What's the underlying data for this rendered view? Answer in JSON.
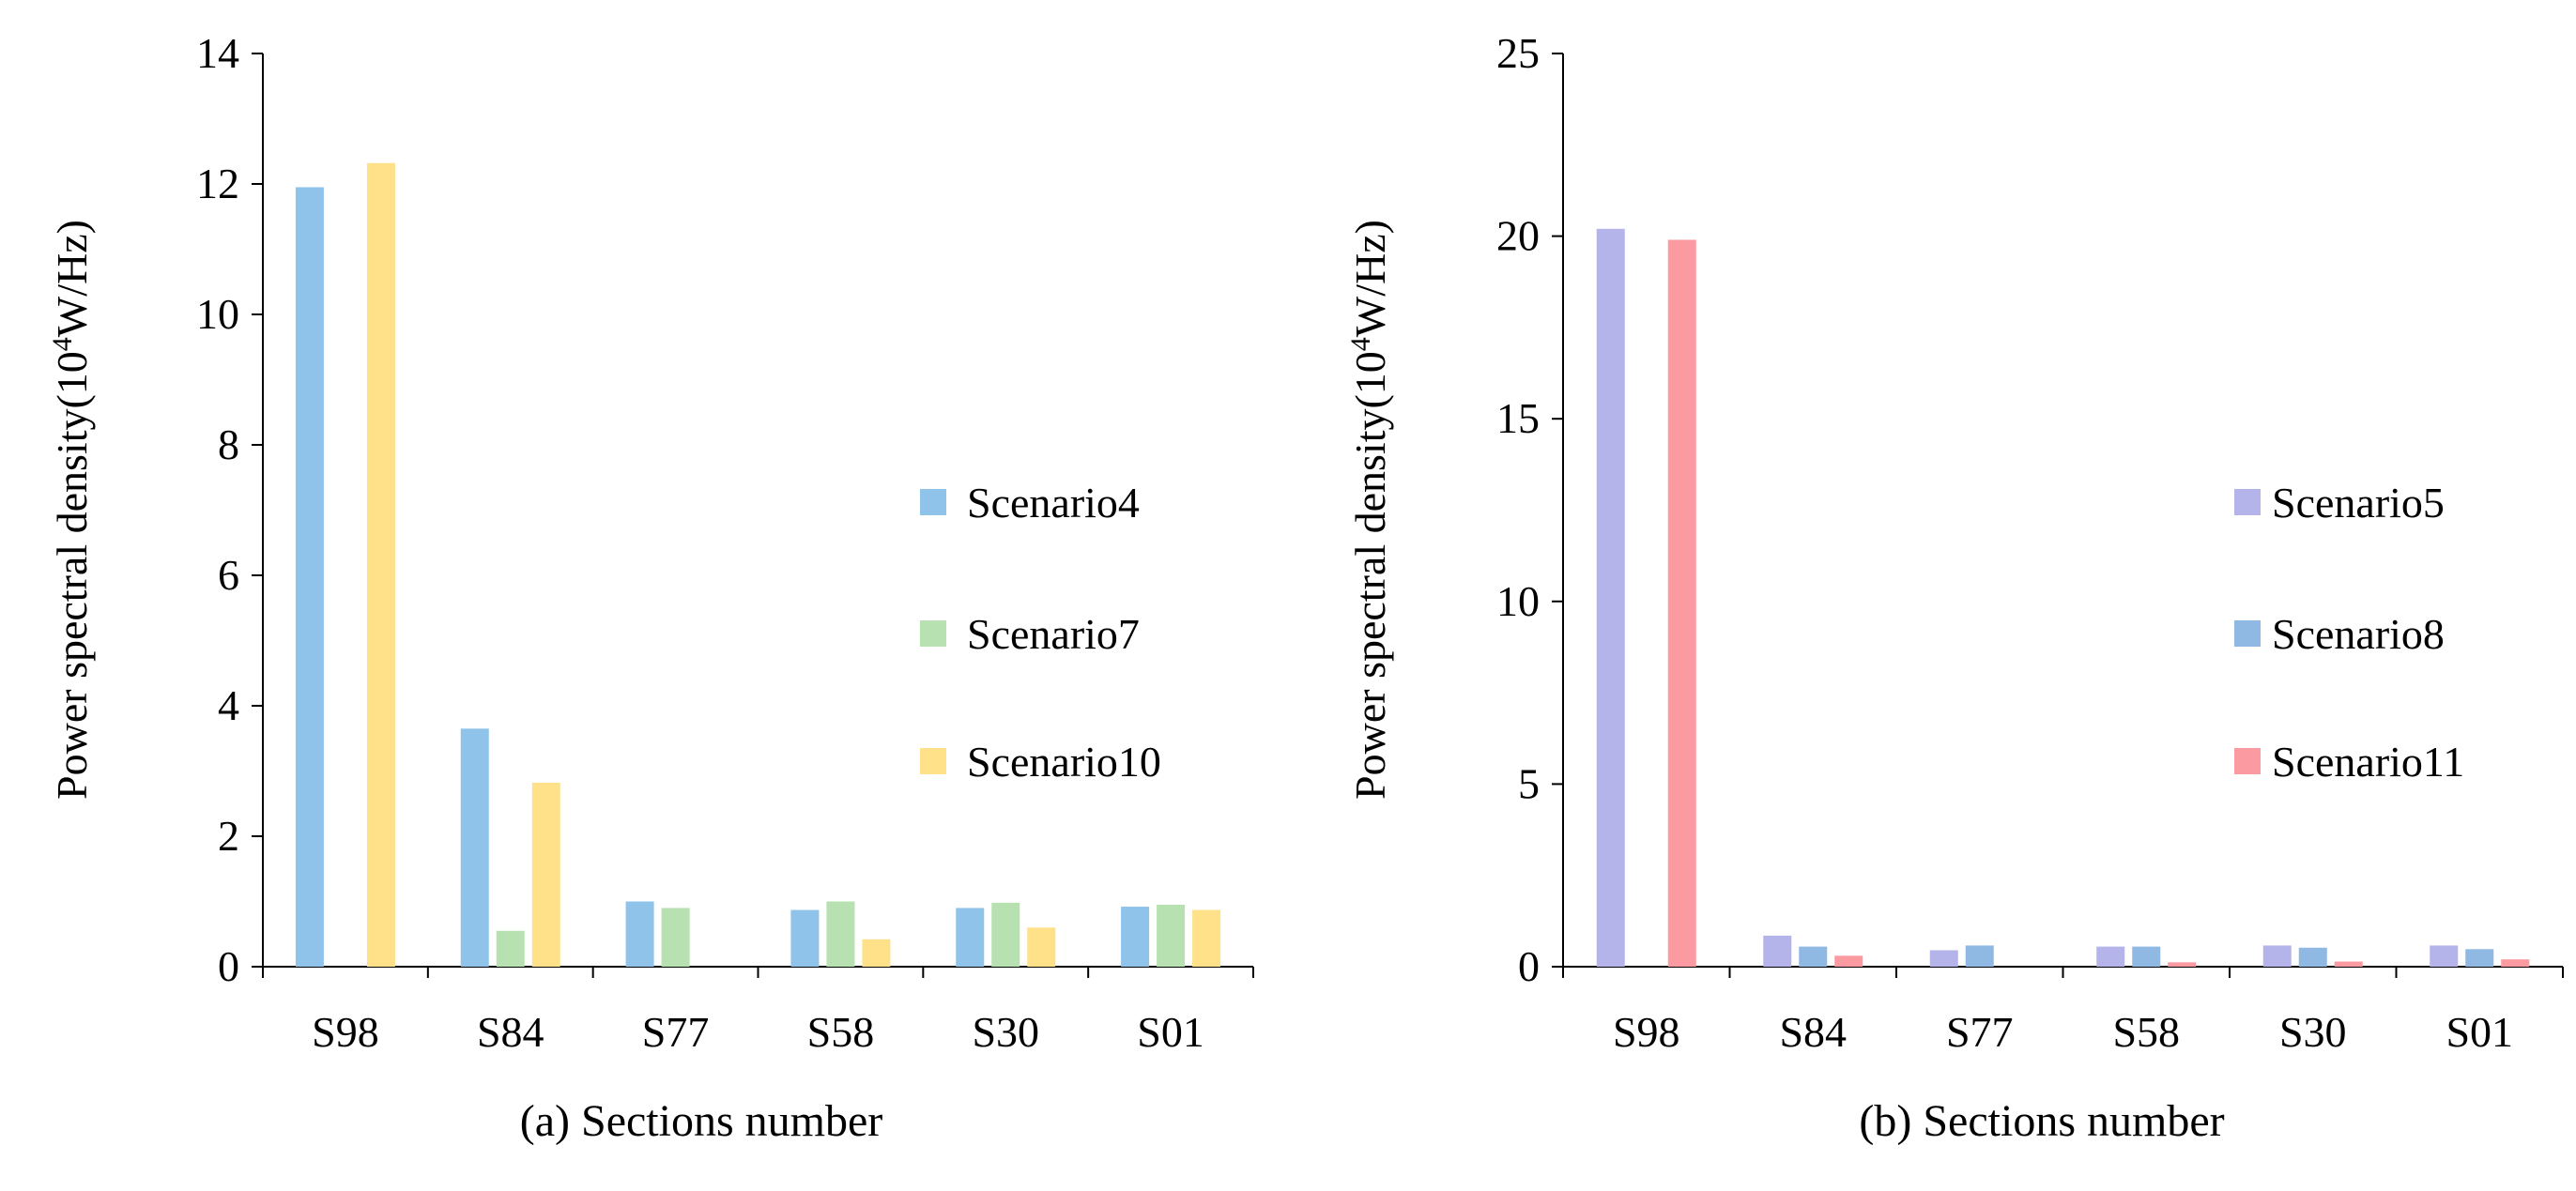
{
  "chart_data": [
    {
      "id": "a",
      "type": "bar",
      "xlabel": "(a)  Sections number",
      "ylabel_main": "Power spectral density(10",
      "ylabel_sup": "4",
      "ylabel_tail": "W/Hz)",
      "ylim": [
        0,
        14
      ],
      "yticks": [
        "0",
        "2",
        "4",
        "6",
        "8",
        "10",
        "12",
        "14"
      ],
      "categories": [
        "S98",
        "S84",
        "S77",
        "S58",
        "S30",
        "S01"
      ],
      "series": [
        {
          "name": "Scenario4",
          "color": "#8fc3ea",
          "values": [
            11.95,
            3.65,
            1.0,
            0.87,
            0.9,
            0.92
          ]
        },
        {
          "name": "Scenario7",
          "color": "#b7e1b0",
          "values": [
            0,
            0.55,
            0.9,
            1.0,
            0.98,
            0.95
          ]
        },
        {
          "name": "Scenario10",
          "color": "#fee189",
          "values": [
            12.32,
            2.82,
            0,
            0.42,
            0.6,
            0.87
          ]
        }
      ],
      "legend_position": "right"
    },
    {
      "id": "b",
      "type": "bar",
      "xlabel": "(b) Sections number",
      "ylabel_main": "Power spectral density(10",
      "ylabel_sup": "4",
      "ylabel_tail": "W/Hz)",
      "ylim": [
        0,
        25
      ],
      "yticks": [
        "0",
        "5",
        "10",
        "15",
        "20",
        "25"
      ],
      "categories": [
        "S98",
        "S84",
        "S77",
        "S58",
        "S30",
        "S01"
      ],
      "series": [
        {
          "name": "Scenario5",
          "color": "#b4b4ea",
          "values": [
            20.2,
            0.85,
            0.45,
            0.55,
            0.58,
            0.58
          ]
        },
        {
          "name": "Scenario8",
          "color": "#8fb8e3",
          "values": [
            0,
            0.55,
            0.58,
            0.55,
            0.52,
            0.48
          ]
        },
        {
          "name": "Scenario11",
          "color": "#fb9aa0",
          "values": [
            19.9,
            0.3,
            0,
            0.12,
            0.14,
            0.2
          ]
        }
      ],
      "legend_position": "right"
    }
  ]
}
